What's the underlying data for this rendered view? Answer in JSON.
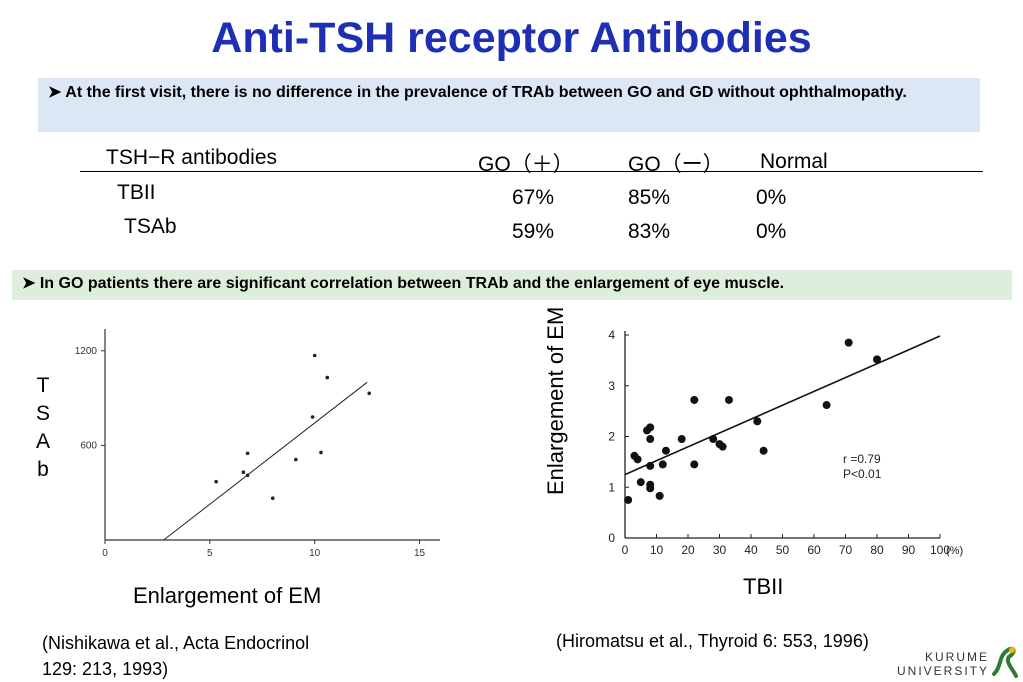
{
  "title": "Anti-TSH receptor Antibodies",
  "bullet1": "At the first visit, there is no difference in the prevalence of TRAb between GO and GD without ophthalmopathy.",
  "bullet2": "In GO patients there are significant correlation between TRAb and the enlargement of eye muscle.",
  "table": {
    "header": [
      "TSH−R antibodies",
      "GO（＋）",
      "GO（ー）",
      "Normal"
    ],
    "rows": [
      {
        "label": "TBII",
        "go_pos": "67%",
        "go_neg": "85%",
        "normal": "0%"
      },
      {
        "label": "TSAb",
        "go_pos": "59%",
        "go_neg": "83%",
        "normal": "0%"
      }
    ]
  },
  "chart_data": [
    {
      "type": "scatter",
      "xlabel": "Enlargement of EM",
      "ylabel": "TSAb",
      "xticks": [
        "0",
        "5",
        "10",
        "15"
      ],
      "yticks": [
        "600",
        "1200"
      ],
      "xlim": [
        0,
        15.5
      ],
      "ylim": [
        0,
        1300
      ],
      "points": [
        {
          "x": 5.3,
          "y": 370
        },
        {
          "x": 6.6,
          "y": 430
        },
        {
          "x": 6.8,
          "y": 410
        },
        {
          "x": 6.8,
          "y": 550
        },
        {
          "x": 8.0,
          "y": 265
        },
        {
          "x": 9.1,
          "y": 510
        },
        {
          "x": 9.9,
          "y": 780
        },
        {
          "x": 10.0,
          "y": 1170
        },
        {
          "x": 10.3,
          "y": 555
        },
        {
          "x": 10.6,
          "y": 1030
        },
        {
          "x": 12.6,
          "y": 930
        }
      ],
      "fit_line": [
        [
          2.8,
          0
        ],
        [
          12.5,
          1000
        ]
      ]
    },
    {
      "type": "scatter",
      "xlabel": "TBII",
      "ylabel": "Enlargement of EM",
      "x_unit": "(%)",
      "xticks": [
        "0",
        "10",
        "20",
        "30",
        "40",
        "50",
        "60",
        "70",
        "80",
        "90",
        "100"
      ],
      "yticks": [
        "0",
        "1",
        "2",
        "3",
        "4"
      ],
      "xlim": [
        0,
        100
      ],
      "ylim": [
        0,
        4
      ],
      "annotation": [
        "r =0.79",
        "P<0.01"
      ],
      "points": [
        {
          "x": 1,
          "y": 0.75
        },
        {
          "x": 3,
          "y": 1.62
        },
        {
          "x": 4,
          "y": 1.55
        },
        {
          "x": 5,
          "y": 1.1
        },
        {
          "x": 7,
          "y": 2.12
        },
        {
          "x": 8,
          "y": 2.18
        },
        {
          "x": 8,
          "y": 1.95
        },
        {
          "x": 8,
          "y": 1.05
        },
        {
          "x": 8,
          "y": 0.98
        },
        {
          "x": 8,
          "y": 1.42
        },
        {
          "x": 11,
          "y": 0.83
        },
        {
          "x": 12,
          "y": 1.45
        },
        {
          "x": 13,
          "y": 1.72
        },
        {
          "x": 18,
          "y": 1.95
        },
        {
          "x": 22,
          "y": 1.45
        },
        {
          "x": 22,
          "y": 2.72
        },
        {
          "x": 28,
          "y": 1.95
        },
        {
          "x": 30,
          "y": 1.85
        },
        {
          "x": 31,
          "y": 1.8
        },
        {
          "x": 33,
          "y": 2.72
        },
        {
          "x": 42,
          "y": 2.3
        },
        {
          "x": 44,
          "y": 1.72
        },
        {
          "x": 64,
          "y": 2.62
        },
        {
          "x": 71,
          "y": 3.85
        },
        {
          "x": 80,
          "y": 3.52
        }
      ],
      "fit_line": [
        [
          0,
          1.25
        ],
        [
          100,
          3.98
        ]
      ]
    }
  ],
  "left_ylabel_letters": [
    "T",
    "S",
    "A",
    "b"
  ],
  "ref_left": [
    "(Nishikawa et al., Acta Endocrinol",
    "129: 213, 1993)"
  ],
  "ref_right": "(Hiromatsu et al., Thyroid 6: 553, 1996)",
  "logo": {
    "line1": "KURUME",
    "line2": "UNIVERSITY",
    "color": "#2e7d32"
  }
}
